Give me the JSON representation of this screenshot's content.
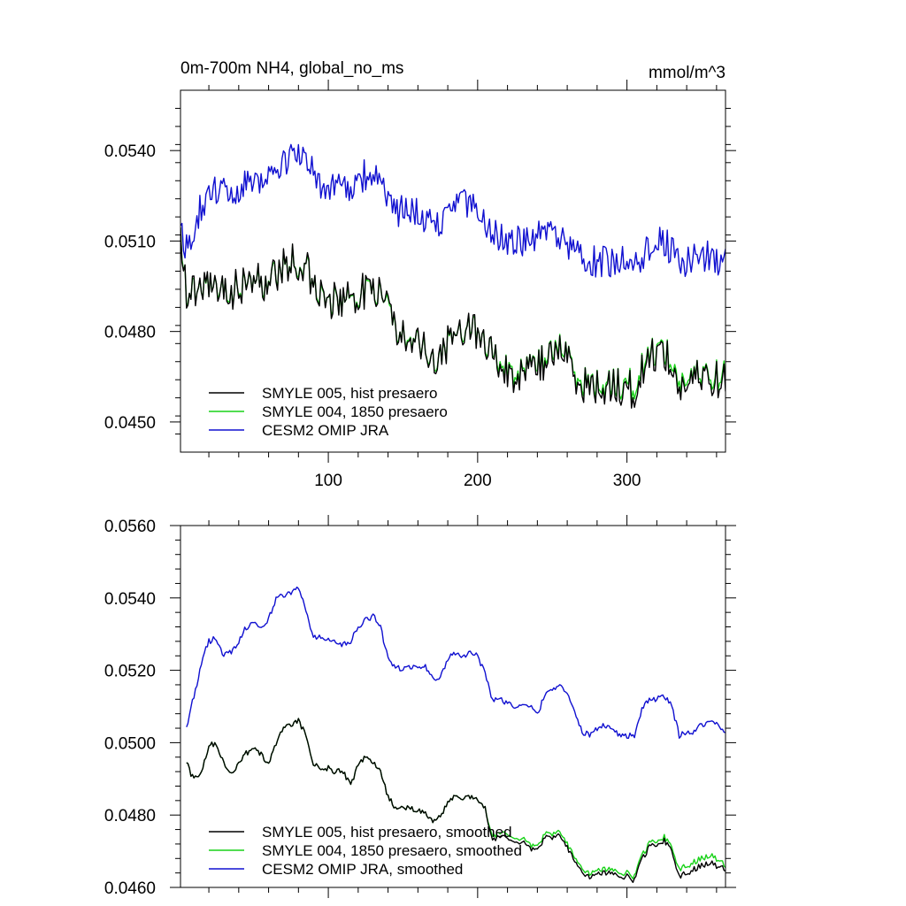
{
  "chart_data": [
    {
      "type": "line",
      "title": "0m-700m NH4, global_no_ms",
      "units": "mmol/m^3",
      "xlabel": "",
      "ylabel": "",
      "xlim": [
        1,
        366
      ],
      "ylim": [
        0.044,
        0.056
      ],
      "x_ticks": [
        100,
        200,
        300
      ],
      "x_tick_labels": [
        "100",
        "200",
        "300"
      ],
      "y_ticks": [
        0.045,
        0.048,
        0.051,
        0.054
      ],
      "y_tick_labels": [
        "0.0450",
        "0.0480",
        "0.0510",
        "0.0540"
      ],
      "legend_position": "bottom-left",
      "noise": [
        0.00065,
        0.00055,
        0.00055
      ],
      "series": [
        {
          "name": "SMYLE 005, hist presaero",
          "color": "#000000",
          "x": [
            1,
            5,
            15,
            25,
            35,
            45,
            55,
            65,
            75,
            85,
            95,
            105,
            115,
            125,
            135,
            145,
            155,
            165,
            175,
            185,
            195,
            205,
            215,
            225,
            235,
            245,
            255,
            265,
            275,
            285,
            295,
            305,
            315,
            325,
            335,
            345,
            355,
            366
          ],
          "values": [
            0.0515,
            0.0492,
            0.0494,
            0.0496,
            0.0493,
            0.0497,
            0.0496,
            0.0499,
            0.0503,
            0.0502,
            0.0491,
            0.049,
            0.049,
            0.0494,
            0.0492,
            0.048,
            0.048,
            0.0473,
            0.0471,
            0.048,
            0.0483,
            0.0477,
            0.0468,
            0.0466,
            0.0466,
            0.047,
            0.0475,
            0.0466,
            0.0461,
            0.0462,
            0.0462,
            0.046,
            0.0472,
            0.0474,
            0.0461,
            0.0464,
            0.0465,
            0.0463
          ]
        },
        {
          "name": "SMYLE 004, 1850 presaero",
          "color": "#19d219",
          "x": [
            1,
            5,
            15,
            25,
            35,
            45,
            55,
            65,
            75,
            85,
            95,
            105,
            115,
            125,
            135,
            145,
            155,
            165,
            175,
            185,
            195,
            205,
            215,
            225,
            235,
            245,
            255,
            265,
            275,
            285,
            295,
            305,
            315,
            325,
            335,
            345,
            355,
            366
          ],
          "values": [
            0.0515,
            0.0492,
            0.0494,
            0.0496,
            0.0493,
            0.0497,
            0.0496,
            0.0499,
            0.0503,
            0.0502,
            0.0491,
            0.049,
            0.049,
            0.0494,
            0.0492,
            0.048,
            0.048,
            0.0473,
            0.0471,
            0.048,
            0.0483,
            0.0477,
            0.0469,
            0.0467,
            0.0467,
            0.0471,
            0.0476,
            0.0467,
            0.0462,
            0.0463,
            0.0463,
            0.0462,
            0.0473,
            0.0475,
            0.0463,
            0.0465,
            0.0466,
            0.0465
          ]
        },
        {
          "name": "CESM2 OMIP JRA",
          "color": "#1010d0",
          "x": [
            1,
            5,
            15,
            25,
            35,
            45,
            55,
            65,
            75,
            85,
            95,
            105,
            115,
            125,
            135,
            145,
            155,
            165,
            175,
            185,
            195,
            205,
            215,
            225,
            235,
            245,
            255,
            265,
            275,
            285,
            295,
            305,
            315,
            325,
            335,
            345,
            355,
            366
          ],
          "values": [
            0.0512,
            0.0508,
            0.0522,
            0.0527,
            0.0526,
            0.053,
            0.0531,
            0.0532,
            0.0539,
            0.0538,
            0.0528,
            0.0527,
            0.0527,
            0.0532,
            0.053,
            0.052,
            0.052,
            0.0517,
            0.0516,
            0.0523,
            0.0522,
            0.0516,
            0.0511,
            0.051,
            0.0509,
            0.0513,
            0.0512,
            0.0506,
            0.0503,
            0.0503,
            0.0503,
            0.0502,
            0.0508,
            0.051,
            0.0503,
            0.0504,
            0.0505,
            0.0503
          ]
        }
      ]
    },
    {
      "type": "line",
      "title": "",
      "xlabel": "",
      "ylabel": "",
      "xlim": [
        1,
        366
      ],
      "ylim": [
        0.046,
        0.056
      ],
      "x_ticks": [
        100,
        200,
        300
      ],
      "x_tick_labels": [
        "",
        "",
        ""
      ],
      "y_ticks": [
        0.046,
        0.048,
        0.05,
        0.052,
        0.054,
        0.056
      ],
      "y_tick_labels": [
        "0.0460",
        "0.0480",
        "0.0500",
        "0.0520",
        "0.0540",
        "0.0560"
      ],
      "legend_position": "bottom-left",
      "noise": [
        8e-05,
        8e-05,
        8e-05
      ],
      "series": [
        {
          "name": "SMYLE 005, hist presaero, smoothed",
          "color": "#000000",
          "x": [
            5,
            8,
            12,
            16,
            20,
            25,
            30,
            35,
            40,
            45,
            50,
            55,
            60,
            65,
            70,
            75,
            80,
            85,
            90,
            95,
            100,
            105,
            110,
            115,
            120,
            125,
            130,
            135,
            140,
            145,
            150,
            155,
            160,
            165,
            170,
            175,
            180,
            185,
            190,
            195,
            200,
            205,
            210,
            215,
            220,
            225,
            230,
            235,
            240,
            245,
            250,
            255,
            260,
            265,
            270,
            275,
            280,
            285,
            290,
            295,
            300,
            305,
            310,
            315,
            320,
            325,
            330,
            335,
            340,
            345,
            350,
            355,
            360,
            366
          ],
          "values": [
            0.0495,
            0.0491,
            0.049,
            0.0493,
            0.0499,
            0.05,
            0.0494,
            0.0492,
            0.0494,
            0.0497,
            0.0498,
            0.0497,
            0.0494,
            0.05,
            0.0504,
            0.0505,
            0.0506,
            0.0502,
            0.0494,
            0.0493,
            0.0493,
            0.0492,
            0.0492,
            0.0488,
            0.0494,
            0.0496,
            0.0495,
            0.0492,
            0.0485,
            0.0482,
            0.0482,
            0.0482,
            0.0481,
            0.0481,
            0.0478,
            0.048,
            0.0483,
            0.0485,
            0.0485,
            0.0485,
            0.0484,
            0.0482,
            0.0473,
            0.0474,
            0.0474,
            0.0472,
            0.0473,
            0.0471,
            0.047,
            0.0474,
            0.0474,
            0.0475,
            0.0471,
            0.0467,
            0.0464,
            0.0463,
            0.0464,
            0.0464,
            0.0464,
            0.0463,
            0.0463,
            0.0462,
            0.0468,
            0.0471,
            0.0472,
            0.0473,
            0.047,
            0.0463,
            0.0464,
            0.0465,
            0.0466,
            0.0467,
            0.0466,
            0.0465
          ]
        },
        {
          "name": "SMYLE 004, 1850 presaero, smoothed",
          "color": "#19d219",
          "x": [
            5,
            8,
            12,
            16,
            20,
            25,
            30,
            35,
            40,
            45,
            50,
            55,
            60,
            65,
            70,
            75,
            80,
            85,
            90,
            95,
            100,
            105,
            110,
            115,
            120,
            125,
            130,
            135,
            140,
            145,
            150,
            155,
            160,
            165,
            170,
            175,
            180,
            185,
            190,
            195,
            200,
            205,
            210,
            215,
            220,
            225,
            230,
            235,
            240,
            245,
            250,
            255,
            260,
            265,
            270,
            275,
            280,
            285,
            290,
            295,
            300,
            305,
            310,
            315,
            320,
            325,
            330,
            335,
            340,
            345,
            350,
            355,
            360,
            366
          ],
          "values": [
            0.0495,
            0.0491,
            0.049,
            0.0493,
            0.0499,
            0.05,
            0.0494,
            0.0492,
            0.0494,
            0.0497,
            0.0498,
            0.0497,
            0.0494,
            0.05,
            0.0504,
            0.0505,
            0.0506,
            0.0502,
            0.0494,
            0.0493,
            0.0493,
            0.0492,
            0.0492,
            0.0488,
            0.0494,
            0.0496,
            0.0495,
            0.0492,
            0.0485,
            0.0482,
            0.0482,
            0.0482,
            0.0481,
            0.0481,
            0.0478,
            0.048,
            0.0483,
            0.0485,
            0.0485,
            0.0485,
            0.0484,
            0.0482,
            0.0474,
            0.0475,
            0.0475,
            0.0473,
            0.0474,
            0.0472,
            0.0471,
            0.0475,
            0.0475,
            0.0476,
            0.0472,
            0.0468,
            0.0465,
            0.0464,
            0.0465,
            0.0465,
            0.0465,
            0.0464,
            0.0464,
            0.0463,
            0.0469,
            0.0472,
            0.0473,
            0.0474,
            0.0471,
            0.0465,
            0.0466,
            0.0467,
            0.0468,
            0.0469,
            0.0468,
            0.0466
          ]
        },
        {
          "name": "CESM2 OMIP JRA, smoothed",
          "color": "#1010d0",
          "x": [
            5,
            8,
            12,
            16,
            20,
            25,
            30,
            35,
            40,
            45,
            50,
            55,
            60,
            65,
            70,
            75,
            80,
            85,
            90,
            95,
            100,
            105,
            110,
            115,
            120,
            125,
            130,
            135,
            140,
            145,
            150,
            155,
            160,
            165,
            170,
            175,
            180,
            185,
            190,
            195,
            200,
            205,
            210,
            215,
            220,
            225,
            230,
            235,
            240,
            245,
            250,
            255,
            260,
            265,
            270,
            275,
            280,
            285,
            290,
            295,
            300,
            305,
            310,
            315,
            320,
            325,
            330,
            335,
            340,
            345,
            350,
            355,
            360,
            366
          ],
          "values": [
            0.0504,
            0.051,
            0.0516,
            0.0524,
            0.0528,
            0.0529,
            0.0524,
            0.0525,
            0.0528,
            0.0532,
            0.0533,
            0.0532,
            0.0534,
            0.054,
            0.0541,
            0.0541,
            0.0543,
            0.0537,
            0.0529,
            0.0529,
            0.0529,
            0.0528,
            0.0527,
            0.0528,
            0.0532,
            0.0534,
            0.0535,
            0.0532,
            0.0523,
            0.0521,
            0.052,
            0.0521,
            0.0521,
            0.0521,
            0.0518,
            0.0518,
            0.0523,
            0.0525,
            0.0524,
            0.0525,
            0.0524,
            0.0519,
            0.0512,
            0.0512,
            0.0511,
            0.051,
            0.051,
            0.051,
            0.0508,
            0.0513,
            0.0515,
            0.0516,
            0.0514,
            0.0508,
            0.0503,
            0.0502,
            0.0504,
            0.0505,
            0.0504,
            0.0502,
            0.0502,
            0.0502,
            0.0509,
            0.0512,
            0.0512,
            0.0513,
            0.051,
            0.0502,
            0.0503,
            0.0503,
            0.0505,
            0.0506,
            0.0505,
            0.0503
          ]
        }
      ]
    }
  ]
}
